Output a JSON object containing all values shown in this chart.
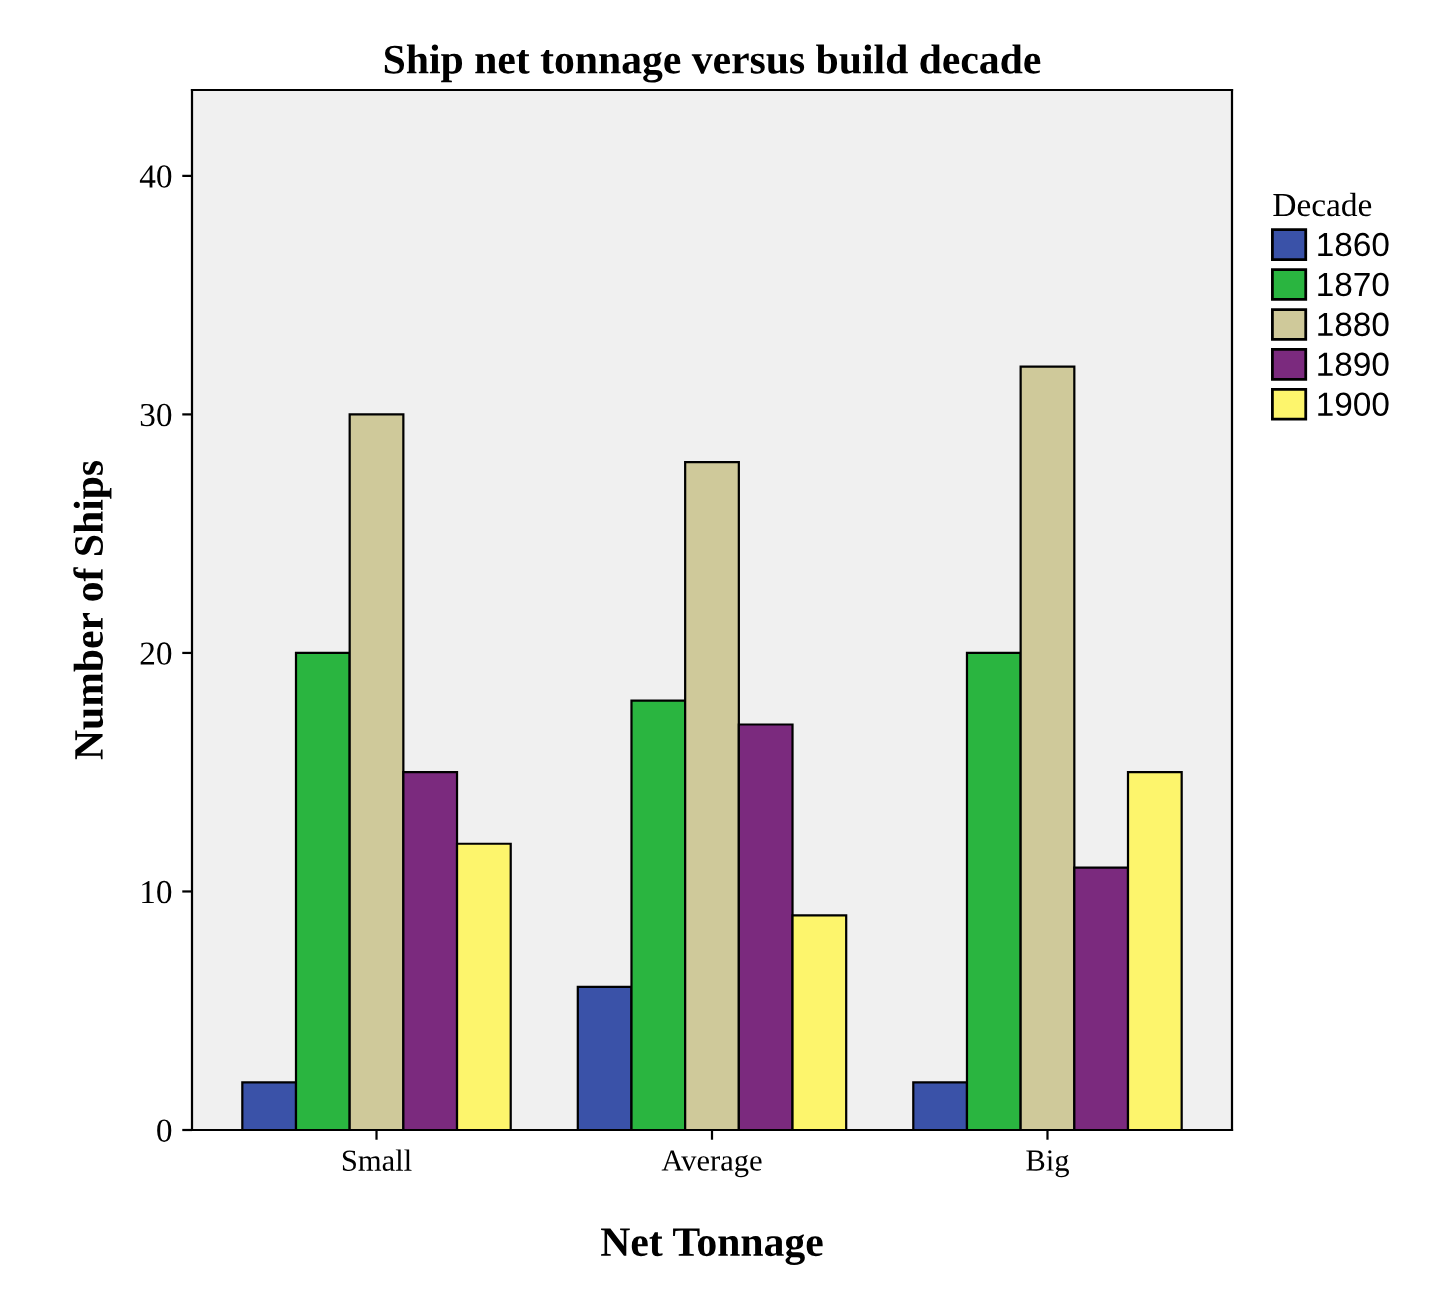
{
  "chart_data": {
    "type": "bar",
    "title": "Ship net tonnage versus build decade",
    "xlabel": "Net Tonnage",
    "ylabel": "Number of Ships",
    "legend_title": "Decade",
    "categories": [
      "Small",
      "Average",
      "Big"
    ],
    "series": [
      {
        "name": "1860",
        "color": "#3a52a8",
        "values": [
          2,
          6,
          2
        ]
      },
      {
        "name": "1870",
        "color": "#2ab540",
        "values": [
          20,
          18,
          20
        ]
      },
      {
        "name": "1880",
        "color": "#cfc99a",
        "values": [
          30,
          28,
          32
        ]
      },
      {
        "name": "1890",
        "color": "#7b2a7e",
        "values": [
          15,
          17,
          11
        ]
      },
      {
        "name": "1900",
        "color": "#fdf56c",
        "values": [
          12,
          9,
          15
        ]
      }
    ],
    "ylim": [
      0,
      43.6
    ],
    "yticks": [
      0,
      10,
      20,
      30,
      40
    ],
    "grid": false,
    "legend": "right"
  }
}
